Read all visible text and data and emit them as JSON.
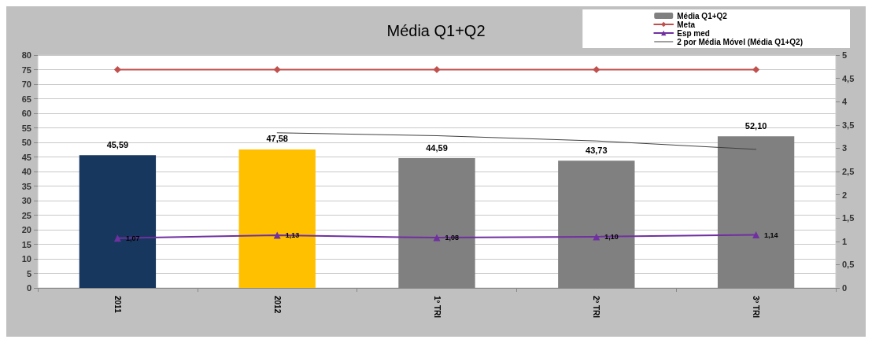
{
  "chart_data": {
    "type": "bar",
    "title": "Média Q1+Q2",
    "categories": [
      "2011",
      "2012",
      "1º TRI",
      "2º TRI",
      "3º TRI"
    ],
    "series": [
      {
        "name": "Média Q1+Q2",
        "color": "#808080",
        "colors": [
          "#17375e",
          "#ffc000",
          "#808080",
          "#808080",
          "#808080"
        ],
        "values": [
          45.59,
          47.58,
          44.59,
          43.73,
          52.1
        ],
        "value_labels": [
          "45,59",
          "47,58",
          "44,59",
          "43,73",
          "52,10"
        ]
      },
      {
        "name": "Meta",
        "type": "line",
        "color": "#c0504d",
        "marker": "diamond",
        "values": [
          75,
          75,
          75,
          75,
          75
        ]
      },
      {
        "name": "Esp med",
        "type": "line",
        "axis": "y2",
        "color": "#7030a0",
        "marker": "triangle",
        "values": [
          1.07,
          1.13,
          1.08,
          1.1,
          1.14
        ],
        "value_labels": [
          "1,07",
          "1,13",
          "1,08",
          "1,10",
          "1,14"
        ]
      },
      {
        "name": "2 por Média Móvel (Média Q1+Q2)",
        "type": "line",
        "color": "#404040",
        "marker": "none",
        "values": [
          null,
          53.3,
          52.3,
          50.5,
          47.6
        ]
      }
    ],
    "ylim": [
      0,
      80
    ],
    "yticks": [
      0,
      5,
      10,
      15,
      20,
      25,
      30,
      35,
      40,
      45,
      50,
      55,
      60,
      65,
      70,
      75,
      80
    ],
    "y2lim": [
      0,
      5
    ],
    "y2ticks": [
      0,
      {
        "value": 0.5,
        "label": "0,5"
      },
      1,
      {
        "value": 1.5,
        "label": "1,5"
      },
      2,
      {
        "value": 2.5,
        "label": "2,5"
      },
      3,
      {
        "value": 3.5,
        "label": "3,5"
      },
      4,
      {
        "value": 4.5,
        "label": "4,5"
      },
      5
    ],
    "grid": "y",
    "legend": "top right"
  }
}
